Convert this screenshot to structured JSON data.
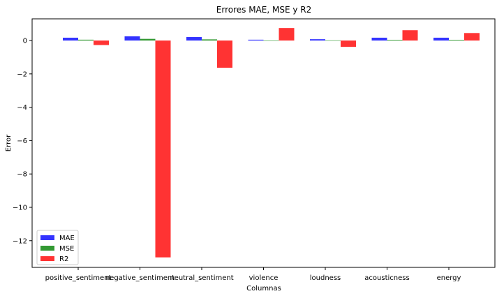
{
  "chart_data": {
    "type": "bar",
    "title": "Errores MAE, MSE y R2",
    "xlabel": "Columnas",
    "ylabel": "Error",
    "categories": [
      "positive_sentiment",
      "negative_sentiment",
      "neutral_sentiment",
      "violence",
      "loudness",
      "acousticness",
      "energy"
    ],
    "series": [
      {
        "name": "MAE",
        "color": "#0000ff",
        "values": [
          0.17,
          0.25,
          0.21,
          0.05,
          0.08,
          0.17,
          0.17
        ]
      },
      {
        "name": "MSE",
        "color": "#008000",
        "values": [
          0.05,
          0.1,
          0.07,
          0.005,
          0.01,
          0.04,
          0.04
        ]
      },
      {
        "name": "R2",
        "color": "#ff0000",
        "values": [
          -0.27,
          -13.0,
          -1.63,
          0.75,
          -0.38,
          0.62,
          0.45
        ]
      }
    ],
    "ylim": [
      -13.6,
      1.3
    ],
    "yticks": [
      0,
      -2,
      -4,
      -6,
      -8,
      -10,
      -12
    ],
    "ytick_labels": [
      "0",
      "−2",
      "−4",
      "−6",
      "−8",
      "−10",
      "−12"
    ],
    "legend_position": "lower-left",
    "grid": false,
    "bar_opacity": 0.8
  }
}
